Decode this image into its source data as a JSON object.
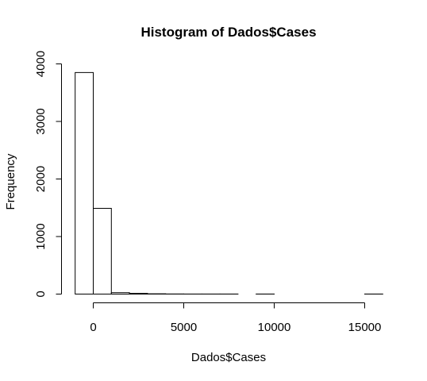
{
  "chart_data": {
    "type": "bar",
    "title": "Histogram of Dados$Cases",
    "xlabel": "Dados$Cases",
    "ylabel": "Frequency",
    "bin_edges": [
      -1000,
      0,
      1000,
      2000,
      3000,
      4000,
      5000,
      6000,
      7000,
      8000,
      9000,
      10000,
      11000,
      12000,
      13000,
      14000,
      15000,
      16000
    ],
    "values": [
      3850,
      1490,
      25,
      12,
      5,
      2,
      1,
      1,
      1,
      0,
      1,
      0,
      0,
      0,
      0,
      0,
      1
    ],
    "xlim": [
      -1000,
      16000
    ],
    "ylim": [
      0,
      4000
    ],
    "x_ticks": [
      "0",
      "5000",
      "10000",
      "15000"
    ],
    "y_ticks": [
      "0",
      "1000",
      "2000",
      "3000",
      "4000"
    ],
    "grid": false
  }
}
